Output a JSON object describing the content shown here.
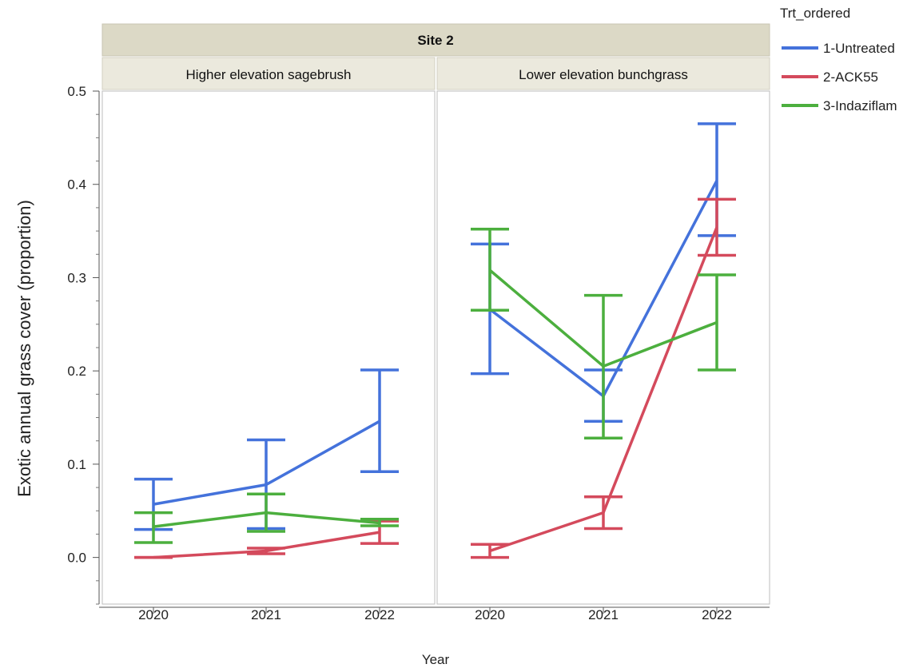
{
  "chart_data": {
    "type": "line",
    "facet_title": "Site 2",
    "panels": [
      {
        "title": "Higher elevation sagebrush",
        "x": [
          "2020",
          "2021",
          "2022"
        ],
        "series": [
          {
            "name": "1-Untreated",
            "values": [
              0.057,
              0.078,
              0.146
            ],
            "lower": [
              0.03,
              0.031,
              0.092
            ],
            "upper": [
              0.084,
              0.126,
              0.201
            ]
          },
          {
            "name": "2-ACK55",
            "values": [
              0.0,
              0.007,
              0.027
            ],
            "lower": [
              0.0,
              0.004,
              0.015
            ],
            "upper": [
              0.0,
              0.01,
              0.039
            ]
          },
          {
            "name": "3-Indaziflam",
            "values": [
              0.033,
              0.048,
              0.037
            ],
            "lower": [
              0.016,
              0.028,
              0.034
            ],
            "upper": [
              0.048,
              0.068,
              0.041
            ]
          }
        ]
      },
      {
        "title": "Lower elevation bunchgrass",
        "x": [
          "2020",
          "2021",
          "2022"
        ],
        "series": [
          {
            "name": "1-Untreated",
            "values": [
              0.266,
              0.173,
              0.404
            ],
            "lower": [
              0.197,
              0.146,
              0.345
            ],
            "upper": [
              0.336,
              0.201,
              0.465
            ]
          },
          {
            "name": "2-ACK55",
            "values": [
              0.007,
              0.048,
              0.354
            ],
            "lower": [
              0.0,
              0.031,
              0.324
            ],
            "upper": [
              0.014,
              0.065,
              0.384
            ]
          },
          {
            "name": "3-Indaziflam",
            "values": [
              0.308,
              0.205,
              0.252
            ],
            "lower": [
              0.265,
              0.128,
              0.201
            ],
            "upper": [
              0.352,
              0.281,
              0.303
            ]
          }
        ]
      }
    ],
    "xlabel": "Year",
    "ylabel": "Exotic annual grass cover (proportion)",
    "ylim": [
      -0.05,
      0.5
    ],
    "yticks": [
      "0.0",
      "0.1",
      "0.2",
      "0.3",
      "0.4",
      "0.5"
    ],
    "legend": {
      "title": "Trt_ordered",
      "position": "top-right",
      "items": [
        {
          "name": "1-Untreated",
          "color": "#4472db"
        },
        {
          "name": "2-ACK55",
          "color": "#d44a5c"
        },
        {
          "name": "3-Indaziflam",
          "color": "#4caf3e"
        }
      ]
    },
    "grid": false
  }
}
